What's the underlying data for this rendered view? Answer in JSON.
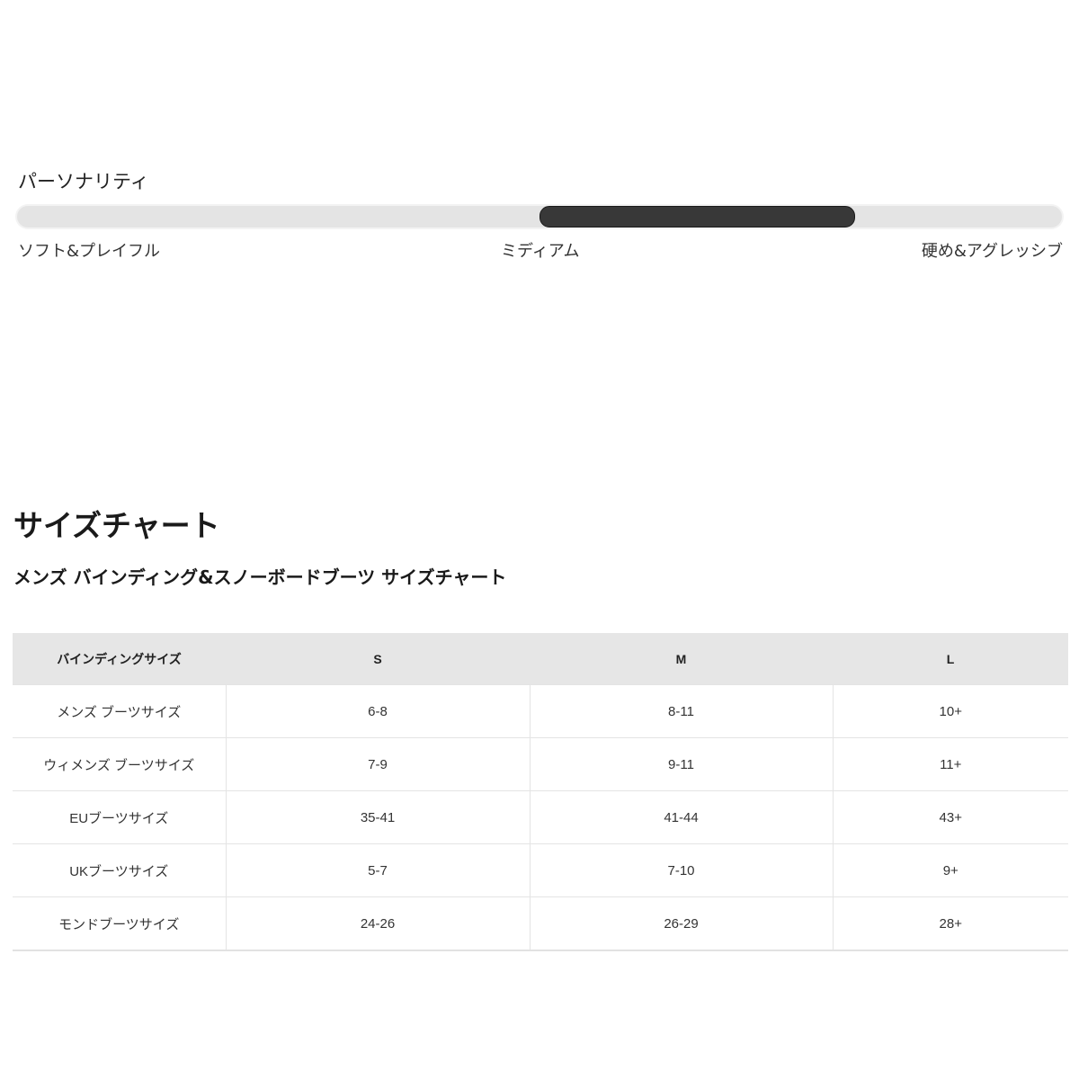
{
  "personality": {
    "title": "パーソナリティ",
    "labels": [
      "ソフト&プレイフル",
      "ミディアム",
      "硬め&アグレッシブ"
    ],
    "range_start_fraction": 0.5,
    "range_end_fraction": 0.8,
    "thumb_color": "#383838",
    "track_color": "#e4e4e4"
  },
  "size_chart": {
    "title": "サイズチャート",
    "subtitle": "メンズ バインディング&スノーボードブーツ サイズチャート",
    "headers": [
      "バインディングサイズ",
      "S",
      "M",
      "L"
    ],
    "rows": [
      [
        "メンズ ブーツサイズ",
        "6-8",
        "8-11",
        "10+"
      ],
      [
        "ウィメンズ ブーツサイズ",
        "7-9",
        "9-11",
        "11+"
      ],
      [
        "EUブーツサイズ",
        "35-41",
        "41-44",
        "43+"
      ],
      [
        "UKブーツサイズ",
        "5-7",
        "7-10",
        "9+"
      ],
      [
        "モンドブーツサイズ",
        "24-26",
        "26-29",
        "28+"
      ]
    ]
  }
}
